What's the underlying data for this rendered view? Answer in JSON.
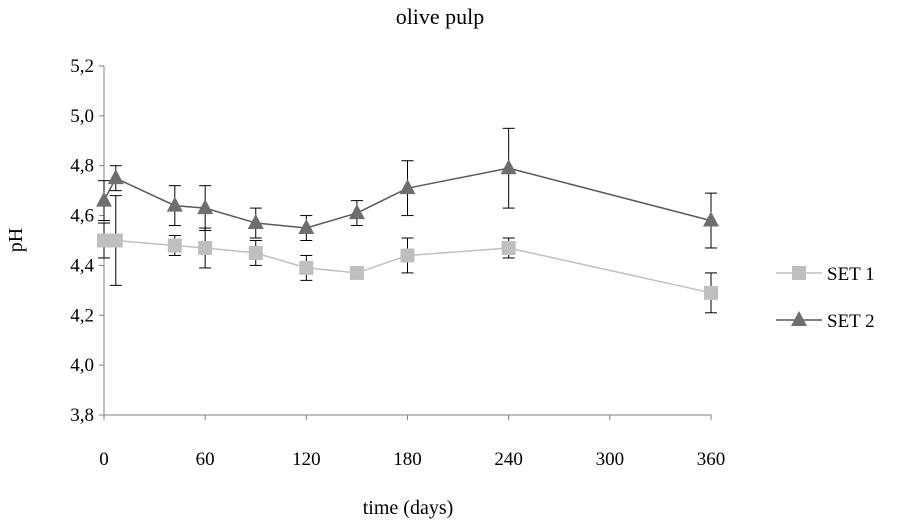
{
  "chart_data": {
    "type": "line",
    "title": "olive pulp",
    "xlabel": "time (days)",
    "ylabel": "pH",
    "xlim": [
      0,
      360
    ],
    "ylim": [
      3.8,
      5.2
    ],
    "x_ticks": [
      0,
      60,
      120,
      180,
      240,
      300,
      360
    ],
    "x_tick_labels": [
      "0",
      "60",
      "120",
      "180",
      "240",
      "300",
      "360"
    ],
    "y_ticks": [
      3.8,
      4.0,
      4.2,
      4.4,
      4.6,
      4.8,
      5.0,
      5.2
    ],
    "y_tick_labels": [
      "3,8",
      "4,0",
      "4,2",
      "4,4",
      "4,6",
      "4,8",
      "5,0",
      "5,2"
    ],
    "grid": false,
    "legend_position": "right",
    "series": [
      {
        "name": "SET 1",
        "marker": "square",
        "line_color": "#c0c0c0",
        "marker_color": "#bfbfbf",
        "x": [
          0,
          7,
          42,
          60,
          90,
          120,
          150,
          180,
          240,
          360
        ],
        "y": [
          4.5,
          4.5,
          4.48,
          4.47,
          4.45,
          4.39,
          4.37,
          4.44,
          4.47,
          4.29
        ],
        "err": [
          0.07,
          0.18,
          0.04,
          0.08,
          0.05,
          0.05,
          0.0,
          0.07,
          0.04,
          0.08
        ]
      },
      {
        "name": "SET 2",
        "marker": "triangle",
        "line_color": "#595959",
        "marker_color": "#6e6e6e",
        "x": [
          0,
          7,
          42,
          60,
          90,
          120,
          150,
          180,
          240,
          360
        ],
        "y": [
          4.66,
          4.75,
          4.64,
          4.63,
          4.57,
          4.55,
          4.61,
          4.71,
          4.79,
          4.58
        ],
        "err": [
          0.08,
          0.05,
          0.08,
          0.09,
          0.06,
          0.05,
          0.05,
          0.11,
          0.16,
          0.11
        ]
      }
    ]
  }
}
